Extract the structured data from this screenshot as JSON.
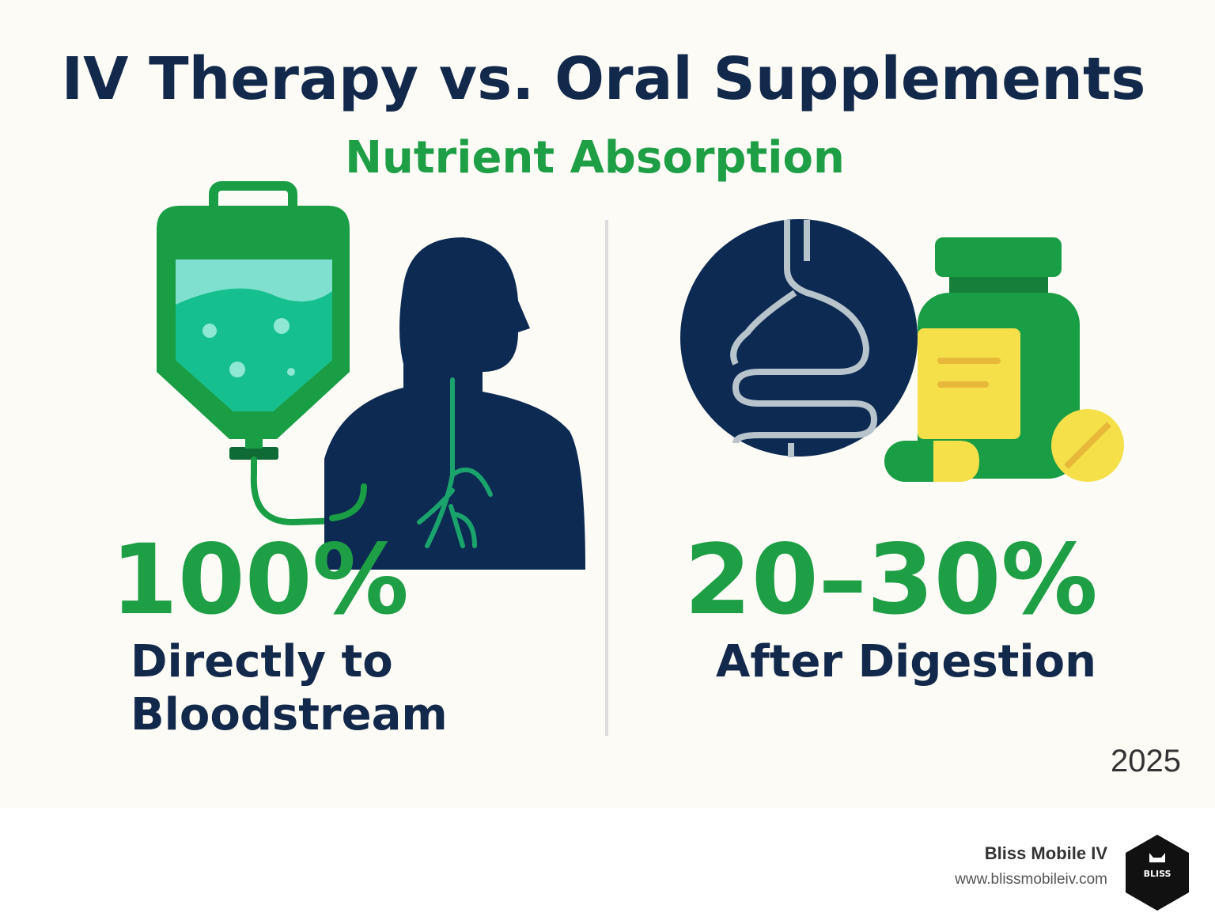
{
  "header": {
    "title": "IV Therapy vs. Oral Supplements",
    "subtitle": "Nutrient Absorption"
  },
  "left": {
    "stat": "100%",
    "label_lines": [
      "Directly to",
      "Bloodstream"
    ]
  },
  "right": {
    "stat": "20–30%",
    "label": "After Digestion"
  },
  "year": "2025",
  "footer": {
    "brand": "Bliss Mobile IV",
    "url": "www.blissmobileiv.com",
    "logo_text": "BLISS"
  }
}
